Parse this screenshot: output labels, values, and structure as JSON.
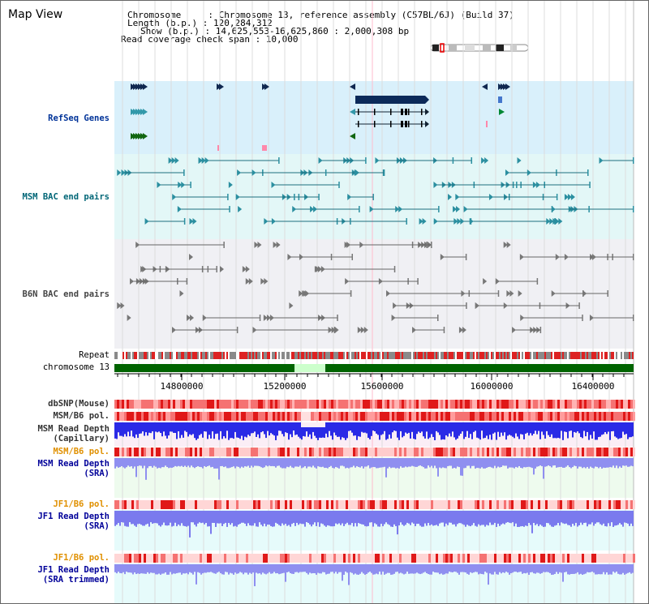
{
  "header": {
    "title": "Map View",
    "info_lines": [
      "Chromosome     : Chromosome 13, reference assembly (C57BL/6J) (Build 37)",
      "Length (b.p.) : 120,284,312",
      "Show (b.p.) : 14,625,553-16,625,860 : 2,000,308 bp",
      "Read coverage check span : 10,000"
    ]
  },
  "tracks": {
    "refseq": "RefSeq Genes",
    "msm_bac": "MSM BAC end pairs",
    "b6n_bac": "B6N BAC end pairs",
    "repeat": "Repeat",
    "chromosome": "chromosome 13",
    "dbsnp": "dbSNP(Mouse)",
    "msm_b6_pol_1": "MSM/B6 pol.",
    "msm_depth_cap_1": "MSM Read Depth",
    "msm_depth_cap_2": "(Capillary)",
    "msm_b6_pol_2": "MSM/B6 pol.",
    "msm_depth_sra_1": "MSM Read Depth",
    "msm_depth_sra_2": "(SRA)",
    "jf1_b6_pol_1": "JF1/B6 pol.",
    "jf1_depth_sra_1": "JF1 Read Depth",
    "jf1_depth_sra_2": "(SRA)",
    "jf1_b6_pol_2": "JF1/B6 pol.",
    "jf1_depth_trim_1": "JF1 Read Depth",
    "jf1_depth_trim_2": "(SRA trimmed)"
  },
  "axis": {
    "ticks": [
      "14800000",
      "15200000",
      "15600000",
      "16000000",
      "16400000"
    ]
  },
  "colors": {
    "refseq_bg": "#d9f0fb",
    "msm_bg": "#e3f7f7",
    "b6n_bg": "#f0f0f4",
    "chromosome": "#006400",
    "gap": "#ccffcc",
    "snp": "#ff9999",
    "depth": "#3333ee"
  }
}
